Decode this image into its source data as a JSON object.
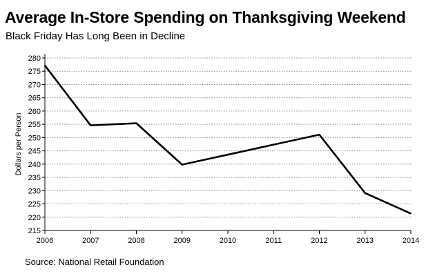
{
  "header": {
    "title": "Average In-Store Spending on Thanksgiving Weekend",
    "subtitle": "Black Friday Has Long Been in Decline"
  },
  "footer": {
    "source": "Source: National Retail Foundation"
  },
  "chart_data": {
    "type": "line",
    "title": "Average In-Store Spending on Thanksgiving Weekend",
    "subtitle": "Black Friday Has Long Been in Decline",
    "xlabel": "",
    "ylabel": "Dollars per Person",
    "x": [
      2006,
      2007,
      2008,
      2009,
      2010,
      2011,
      2012,
      2013,
      2014
    ],
    "x_tick_labels": [
      "2006",
      "2007",
      "2008",
      "2009",
      "2010",
      "2011",
      "2012",
      "2013",
      "2014"
    ],
    "series": [
      {
        "name": "Average In-Store Spending",
        "x": [
          2006,
          2007,
          2008,
          2009,
          2012,
          2013,
          2014
        ],
        "values": [
          277.2,
          254.6,
          255.4,
          239.8,
          251.1,
          229.1,
          221.4
        ],
        "color": "#000000"
      }
    ],
    "y_ticks": [
      215,
      220,
      225,
      230,
      235,
      240,
      245,
      250,
      255,
      260,
      265,
      270,
      275,
      280
    ],
    "y_tick_labels": [
      "215",
      "220",
      "225",
      "230",
      "235",
      "240",
      "245",
      "250",
      "255",
      "260",
      "265",
      "270",
      "275",
      "280"
    ],
    "xlim": [
      2006,
      2014
    ],
    "ylim": [
      215,
      280
    ],
    "grid": "horizontal-dotted",
    "legend": "none"
  }
}
